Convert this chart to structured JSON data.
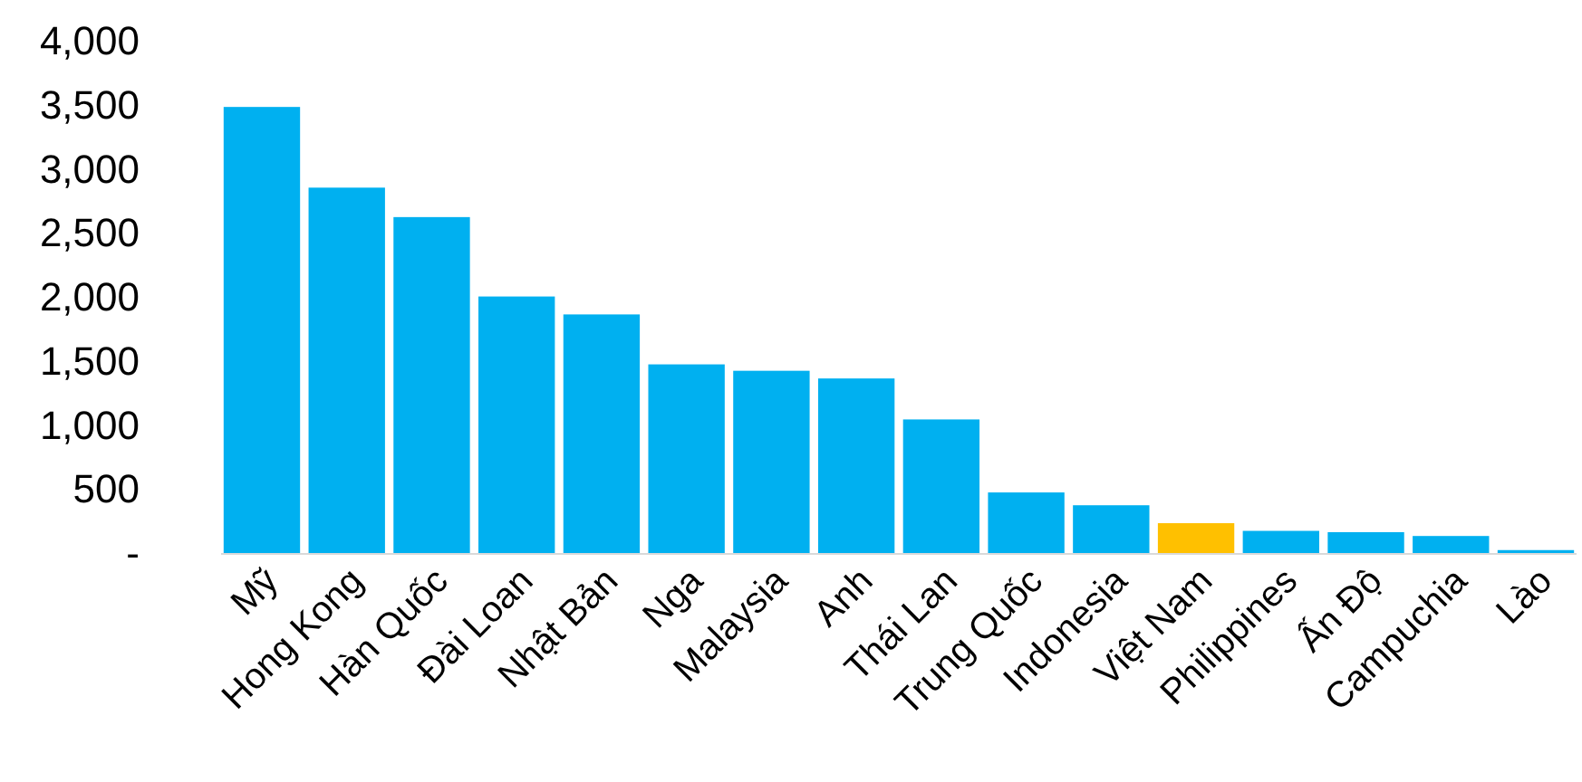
{
  "chart_data": {
    "type": "bar",
    "categories": [
      "Mỹ",
      "Hong Kong",
      "Hàn Quốc",
      "Đài Loan",
      "Nhật Bản",
      "Nga",
      "Malaysia",
      "Anh",
      "Thái Lan",
      "Trung Quốc",
      "Indonesia",
      "Việt Nam",
      "Philippines",
      "Ấn Độ",
      "Campuchia",
      "Lào"
    ],
    "values": [
      3490,
      2860,
      2630,
      2010,
      1870,
      1480,
      1430,
      1370,
      1050,
      480,
      380,
      240,
      180,
      170,
      140,
      30
    ],
    "colors": [
      "#00b0f0",
      "#00b0f0",
      "#00b0f0",
      "#00b0f0",
      "#00b0f0",
      "#00b0f0",
      "#00b0f0",
      "#00b0f0",
      "#00b0f0",
      "#00b0f0",
      "#00b0f0",
      "#ffc000",
      "#00b0f0",
      "#00b0f0",
      "#00b0f0",
      "#00b0f0"
    ],
    "ylim": [
      0,
      4000
    ],
    "yticks": [
      {
        "value": 0,
        "label": "-"
      },
      {
        "value": 500,
        "label": "500"
      },
      {
        "value": 1000,
        "label": "1,000"
      },
      {
        "value": 1500,
        "label": "1,500"
      },
      {
        "value": 2000,
        "label": "2,000"
      },
      {
        "value": 2500,
        "label": "2,500"
      },
      {
        "value": 3000,
        "label": "3,000"
      },
      {
        "value": 3500,
        "label": "3,500"
      },
      {
        "value": 4000,
        "label": "4,000"
      }
    ],
    "grid": false
  }
}
